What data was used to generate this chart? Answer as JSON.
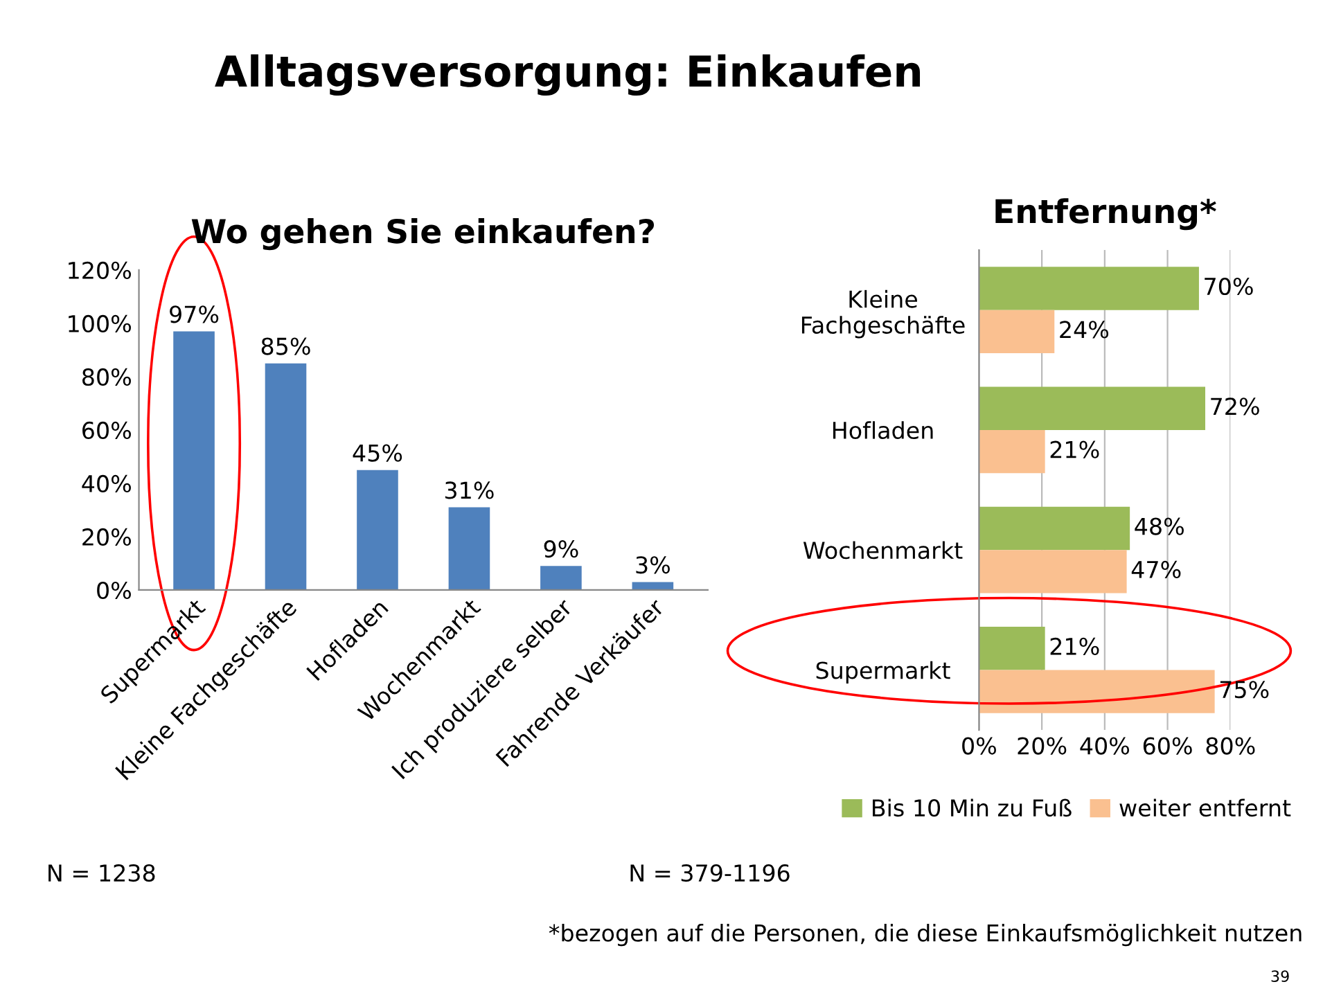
{
  "chart_data": [
    {
      "type": "other",
      "title": "Alltagsversorgung: Einkaufen",
      "annotations": [
        "39"
      ]
    },
    {
      "type": "bar",
      "title": "Wo gehen Sie einkaufen?",
      "categories": [
        "Supermarkt",
        "Kleine Fachgeschäfte",
        "Hofladen",
        "Wochenmarkt",
        "Ich produziere selber",
        "Fahrende Verkäufer"
      ],
      "values": [
        97,
        85,
        45,
        31,
        9,
        3
      ],
      "color": "#4f81bd",
      "value_labels": [
        "97%",
        "85%",
        "45%",
        "31%",
        "9%",
        "3%"
      ],
      "ylim": [
        0,
        120
      ],
      "yticks": [
        {
          "value": 0,
          "label": "0%"
        },
        {
          "value": 20,
          "label": "20%"
        },
        {
          "value": 40,
          "label": "40%"
        },
        {
          "value": 60,
          "label": "60%"
        },
        {
          "value": 80,
          "label": "80%"
        },
        {
          "value": 100,
          "label": "100%"
        },
        {
          "value": 120,
          "label": "120%"
        }
      ],
      "grid": false,
      "annotations": [
        "N = 1238"
      ]
    },
    {
      "type": "bar",
      "orientation": "horizontal",
      "title": "Entfernung*",
      "categories": [
        "Kleine\nFachgeschäfte",
        "Hofladen",
        "Wochenmarkt",
        "Supermarkt"
      ],
      "series": [
        {
          "name": "Bis 10 Min zu Fuß",
          "color": "#9bbb59",
          "values": [
            70,
            72,
            48,
            21
          ],
          "value_labels": [
            "70%",
            "72%",
            "48%",
            "21%"
          ]
        },
        {
          "name": "weiter entfernt",
          "color": "#fac090",
          "values": [
            24,
            21,
            47,
            75
          ],
          "value_labels": [
            "24%",
            "21%",
            "47%",
            "75%"
          ]
        }
      ],
      "xlim": [
        0,
        80
      ],
      "xticks": [
        {
          "value": 0,
          "label": "0%"
        },
        {
          "value": 20,
          "label": "20%"
        },
        {
          "value": 40,
          "label": "40%"
        },
        {
          "value": 60,
          "label": "60%"
        },
        {
          "value": 80,
          "label": "80%"
        }
      ],
      "grid": "x",
      "legend": "bottom",
      "annotations": [
        "N = 379-1196",
        "*bezogen auf die Personen, die diese Einkaufsmöglichkeit nutzen"
      ]
    }
  ]
}
